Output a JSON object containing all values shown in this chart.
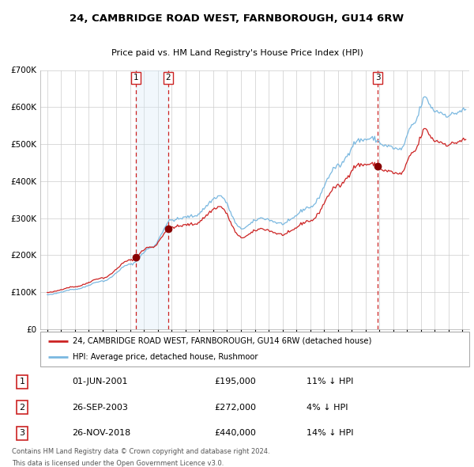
{
  "title": "24, CAMBRIDGE ROAD WEST, FARNBOROUGH, GU14 6RW",
  "subtitle": "Price paid vs. HM Land Registry's House Price Index (HPI)",
  "legend_line1": "24, CAMBRIDGE ROAD WEST, FARNBOROUGH, GU14 6RW (detached house)",
  "legend_line2": "HPI: Average price, detached house, Rushmoor",
  "footnote1": "Contains HM Land Registry data © Crown copyright and database right 2024.",
  "footnote2": "This data is licensed under the Open Government Licence v3.0.",
  "transactions": [
    {
      "num": 1,
      "date": "01-JUN-2001",
      "price": "£195,000",
      "pct": "11% ↓ HPI"
    },
    {
      "num": 2,
      "date": "26-SEP-2003",
      "price": "£272,000",
      "pct": "4% ↓ HPI"
    },
    {
      "num": 3,
      "date": "26-NOV-2018",
      "price": "£440,000",
      "pct": "14% ↓ HPI"
    }
  ],
  "sale_dates_decimal": [
    2001.415,
    2003.733,
    2018.899
  ],
  "sale_prices": [
    195000,
    272000,
    440000
  ],
  "hpi_color": "#7ab8e0",
  "price_color": "#cc2222",
  "point_color": "#880000",
  "dashed_color": "#cc2222",
  "shade_color": "#d8eaf7",
  "grid_color": "#cccccc",
  "bg_color": "#ffffff",
  "ylim": [
    0,
    700000
  ],
  "yticks": [
    0,
    100000,
    200000,
    300000,
    400000,
    500000,
    600000,
    700000
  ],
  "ytick_labels": [
    "£0",
    "£100K",
    "£200K",
    "£300K",
    "£400K",
    "£500K",
    "£600K",
    "£700K"
  ],
  "xlim_start": 1994.5,
  "xlim_end": 2025.5,
  "xticks": [
    1995,
    1996,
    1997,
    1998,
    1999,
    2000,
    2001,
    2002,
    2003,
    2004,
    2005,
    2006,
    2007,
    2008,
    2009,
    2010,
    2011,
    2012,
    2013,
    2014,
    2015,
    2016,
    2017,
    2018,
    2019,
    2020,
    2021,
    2022,
    2023,
    2024,
    2025
  ],
  "hpi_anchors": [
    [
      1995.0,
      93000
    ],
    [
      1997.0,
      108000
    ],
    [
      1999.0,
      130000
    ],
    [
      2001.0,
      175000
    ],
    [
      2002.5,
      220000
    ],
    [
      2004.0,
      295000
    ],
    [
      2005.5,
      305000
    ],
    [
      2007.5,
      360000
    ],
    [
      2009.0,
      272000
    ],
    [
      2010.5,
      300000
    ],
    [
      2012.0,
      285000
    ],
    [
      2014.0,
      330000
    ],
    [
      2016.0,
      440000
    ],
    [
      2017.5,
      510000
    ],
    [
      2018.5,
      515000
    ],
    [
      2019.5,
      495000
    ],
    [
      2020.5,
      485000
    ],
    [
      2021.5,
      555000
    ],
    [
      2022.3,
      625000
    ],
    [
      2023.0,
      590000
    ],
    [
      2024.0,
      578000
    ],
    [
      2025.2,
      592000
    ]
  ]
}
